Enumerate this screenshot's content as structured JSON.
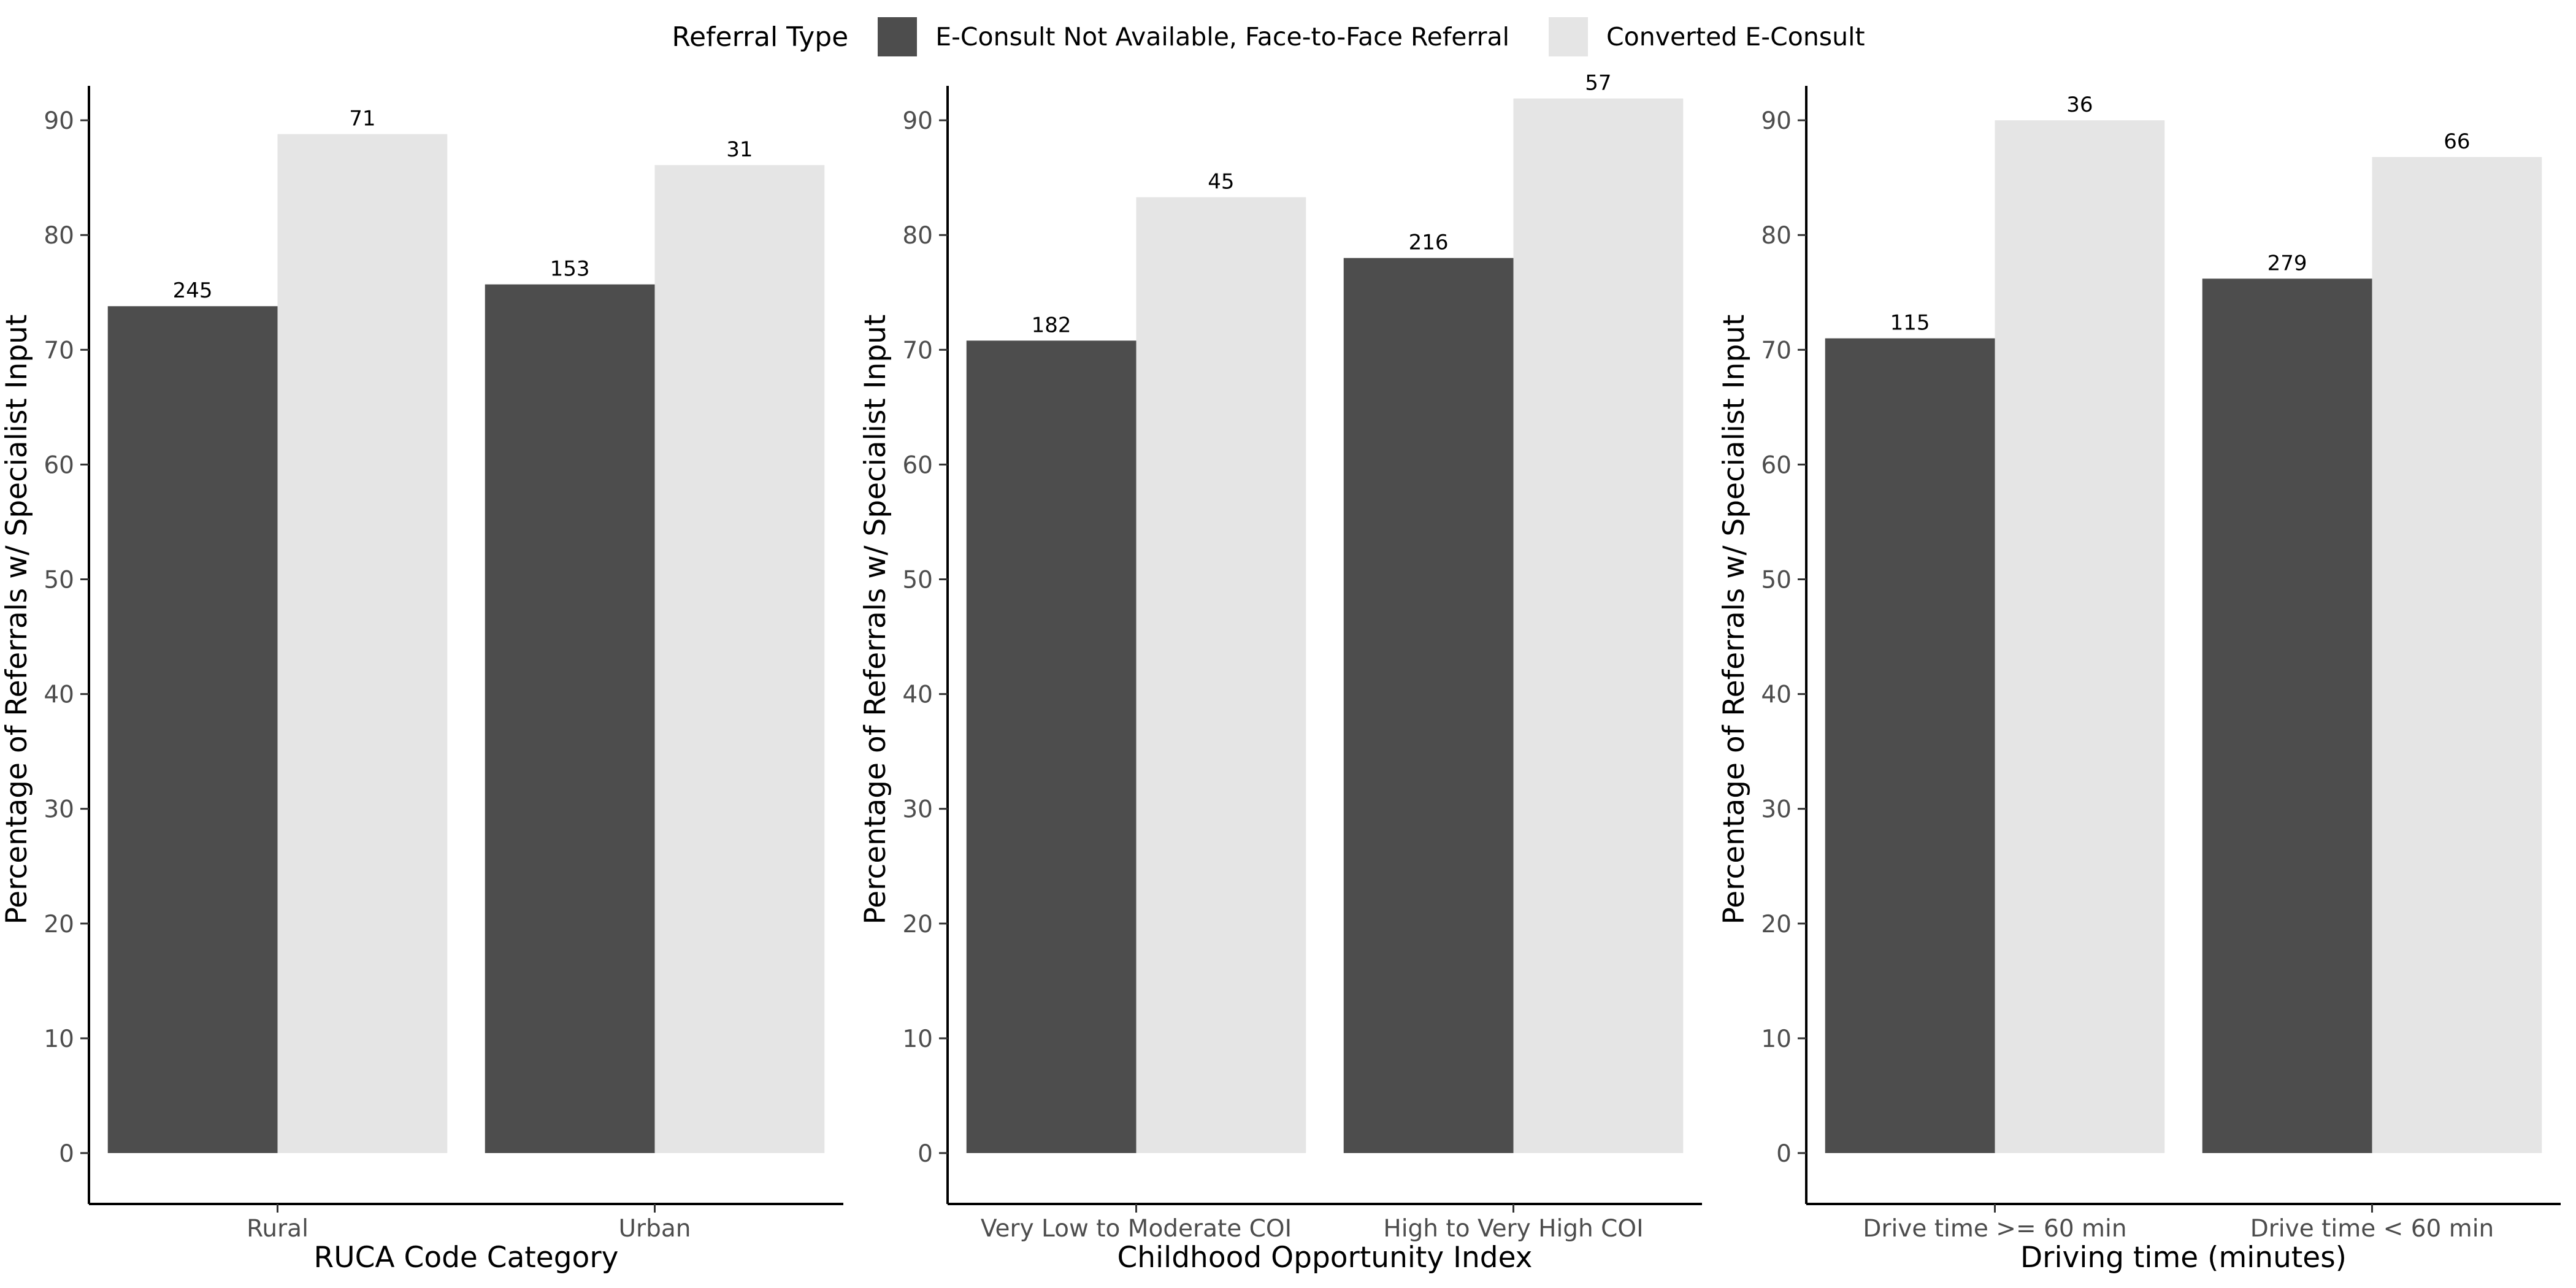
{
  "legend": {
    "title": "Referral Type",
    "items": [
      {
        "label": "E-Consult Not Available, Face-to-Face Referral",
        "color": "#4d4d4d"
      },
      {
        "label": "Converted E-Consult",
        "color": "#e5e5e5"
      }
    ]
  },
  "chart_data": [
    {
      "type": "bar",
      "xlabel": "RUCA Code Category",
      "ylabel": "Percentage of Referrals w/ Specialist Input",
      "ylim": [
        0,
        93
      ],
      "yticks": [
        0,
        10,
        20,
        30,
        40,
        50,
        60,
        70,
        80,
        90
      ],
      "categories": [
        "Rural",
        "Urban"
      ],
      "series": [
        {
          "name": "E-Consult Not Available, Face-to-Face Referral",
          "values": [
            73.8,
            75.7
          ],
          "labels": [
            "245",
            "153"
          ]
        },
        {
          "name": "Converted E-Consult",
          "values": [
            88.8,
            86.1
          ],
          "labels": [
            "71",
            "31"
          ]
        }
      ]
    },
    {
      "type": "bar",
      "xlabel": "Childhood Opportunity Index",
      "ylabel": "Percentage of Referrals w/ Specialist Input",
      "ylim": [
        0,
        93
      ],
      "yticks": [
        0,
        10,
        20,
        30,
        40,
        50,
        60,
        70,
        80,
        90
      ],
      "categories": [
        "Very Low to Moderate COI",
        "High to Very High COI"
      ],
      "series": [
        {
          "name": "E-Consult Not Available, Face-to-Face Referral",
          "values": [
            70.8,
            78.0
          ],
          "labels": [
            "182",
            "216"
          ]
        },
        {
          "name": "Converted E-Consult",
          "values": [
            83.3,
            91.9
          ],
          "labels": [
            "45",
            "57"
          ]
        }
      ]
    },
    {
      "type": "bar",
      "xlabel": "Driving time (minutes)",
      "ylabel": "Percentage of Referrals w/ Specialist Input",
      "ylim": [
        0,
        93
      ],
      "yticks": [
        0,
        10,
        20,
        30,
        40,
        50,
        60,
        70,
        80,
        90
      ],
      "categories": [
        "Drive time >= 60 min",
        "Drive time < 60 min"
      ],
      "series": [
        {
          "name": "E-Consult Not Available, Face-to-Face Referral",
          "values": [
            71.0,
            76.2
          ],
          "labels": [
            "115",
            "279"
          ]
        },
        {
          "name": "Converted E-Consult",
          "values": [
            90.0,
            86.8
          ],
          "labels": [
            "36",
            "66"
          ]
        }
      ]
    }
  ]
}
